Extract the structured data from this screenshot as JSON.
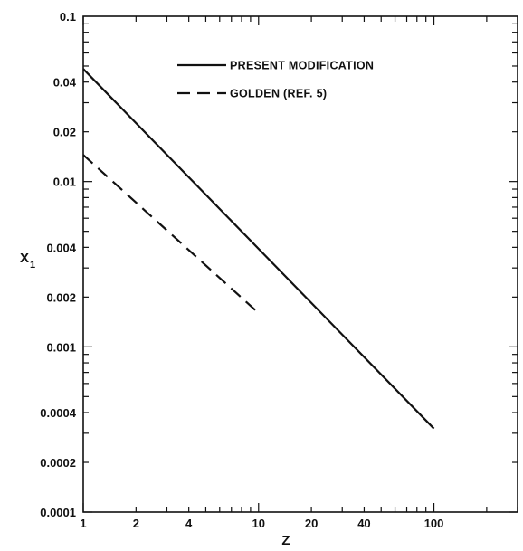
{
  "chart_data": {
    "type": "line",
    "xlabel": "Z",
    "ylabel": "X",
    "ylabel_subscript": "1",
    "xscale": "log",
    "yscale": "log",
    "xlim": [
      1,
      300
    ],
    "ylim": [
      0.0001,
      0.1
    ],
    "x_tick_labels": [
      {
        "value": 1,
        "label": "1"
      },
      {
        "value": 2,
        "label": "2"
      },
      {
        "value": 4,
        "label": "4"
      },
      {
        "value": 10,
        "label": "10"
      },
      {
        "value": 20,
        "label": "20"
      },
      {
        "value": 40,
        "label": "40"
      },
      {
        "value": 100,
        "label": "100"
      }
    ],
    "y_tick_labels": [
      {
        "value": 0.1,
        "label": "0.1"
      },
      {
        "value": 0.04,
        "label": "0.04"
      },
      {
        "value": 0.02,
        "label": "0.02"
      },
      {
        "value": 0.01,
        "label": "0.01"
      },
      {
        "value": 0.004,
        "label": "0.004"
      },
      {
        "value": 0.002,
        "label": "0.002"
      },
      {
        "value": 0.001,
        "label": "0.001"
      },
      {
        "value": 0.0004,
        "label": "0.0004"
      },
      {
        "value": 0.0002,
        "label": "0.0002"
      },
      {
        "value": 0.0001,
        "label": "0.0001"
      }
    ],
    "legend_position": "top-center",
    "series": [
      {
        "name": "PRESENT MODIFICATION",
        "style": "solid",
        "x": [
          1,
          100
        ],
        "y": [
          0.048,
          0.00032
        ]
      },
      {
        "name": "GOLDEN (REF. 5)",
        "style": "dashed",
        "x": [
          1,
          10
        ],
        "y": [
          0.0145,
          0.0016
        ]
      }
    ]
  }
}
